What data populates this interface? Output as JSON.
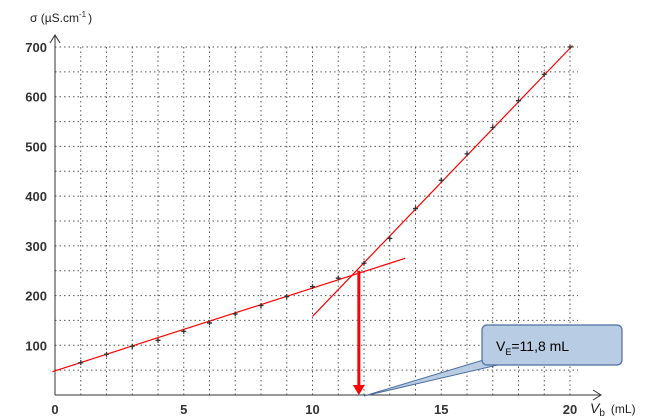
{
  "chart_data": {
    "type": "scatter",
    "title": "",
    "ylabel": "σ (µS.cm",
    "ylabel_sup": "-1",
    "ylabel_close": ")",
    "xlabel": "V",
    "xlabel_sub": "b",
    "xlabel_unit": "(mL)",
    "xlim": [
      0,
      20
    ],
    "ylim": [
      0,
      700
    ],
    "x_ticks": [
      "0",
      "5",
      "10",
      "15",
      "20"
    ],
    "y_ticks": [
      "100",
      "200",
      "300",
      "400",
      "500",
      "600",
      "700"
    ],
    "grid": true,
    "series": [
      {
        "values": [
          {
            "x": 1,
            "y": 65
          },
          {
            "x": 2,
            "y": 82
          },
          {
            "x": 3,
            "y": 98
          },
          {
            "x": 4,
            "y": 110
          },
          {
            "x": 5,
            "y": 128
          },
          {
            "x": 6,
            "y": 145
          },
          {
            "x": 7,
            "y": 163
          },
          {
            "x": 8,
            "y": 180
          },
          {
            "x": 9,
            "y": 198
          },
          {
            "x": 10,
            "y": 218
          },
          {
            "x": 11,
            "y": 235
          },
          {
            "x": 12,
            "y": 265
          },
          {
            "x": 13,
            "y": 315
          },
          {
            "x": 14,
            "y": 375
          },
          {
            "x": 15,
            "y": 432
          },
          {
            "x": 16,
            "y": 485
          },
          {
            "x": 17,
            "y": 538
          },
          {
            "x": 18,
            "y": 592
          },
          {
            "x": 19,
            "y": 645
          },
          {
            "x": 20,
            "y": 700
          }
        ]
      }
    ],
    "fit_lines": [
      {
        "x1": -0.1,
        "y1": 47,
        "x2": 13.6,
        "y2": 275
      },
      {
        "x1": 10,
        "y1": 158,
        "x2": 20.1,
        "y2": 703
      }
    ],
    "equivalence_x": 11.8,
    "equivalence_y": 250,
    "callout": {
      "label": "V",
      "label_sub": "E",
      "label_value": "=11,8 mL"
    },
    "colors": {
      "fit_line": "#ff0000",
      "arrow": "#ff0000",
      "point": "#333333",
      "grid": "#555555",
      "callout_fill": "#b8cce4",
      "callout_border": "#4f6fa0"
    }
  }
}
